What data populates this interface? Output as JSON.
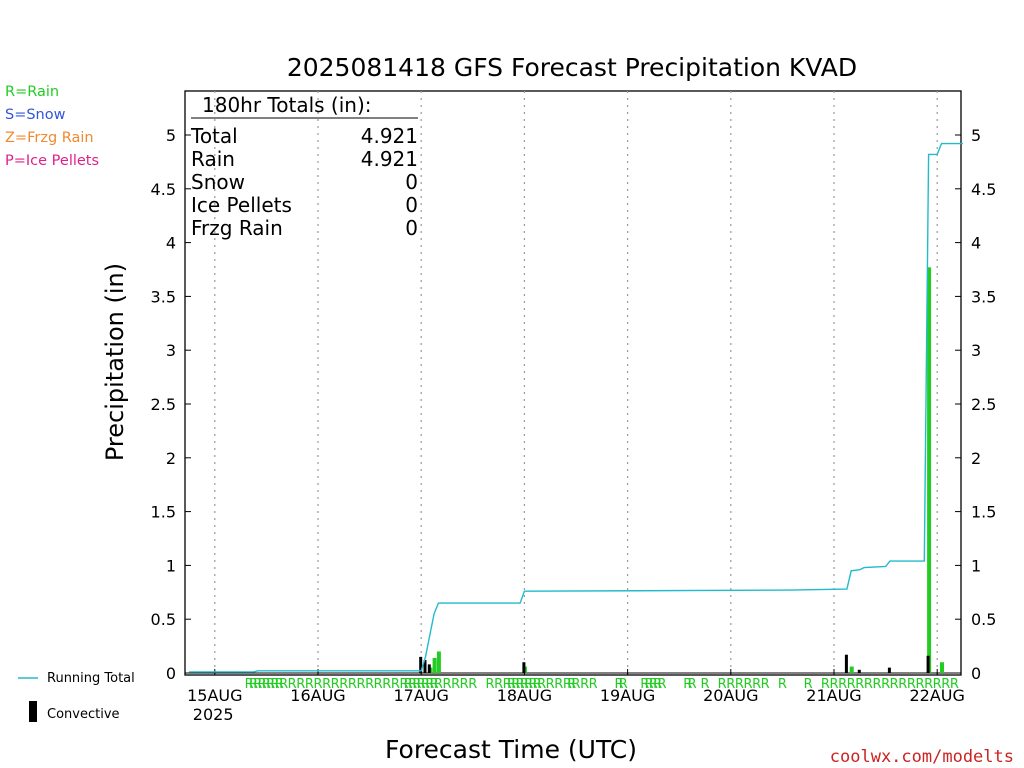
{
  "chart_data": {
    "type": "bar",
    "title": "2025081418 GFS Forecast Precipitation KVAD",
    "ylabel": "Precipitation (in)",
    "xlabel": "Forecast Time (UTC)",
    "ylim": [
      0,
      5.4
    ],
    "yticks": [
      "0",
      "0.5",
      "1",
      "1.5",
      "2",
      "2.5",
      "3",
      "3.5",
      "4",
      "4.5",
      "5"
    ],
    "xticks": [
      {
        "label": "15AUG",
        "sub": "2025",
        "hour": 6
      },
      {
        "label": "16AUG",
        "sub": "",
        "hour": 30
      },
      {
        "label": "17AUG",
        "sub": "",
        "hour": 54
      },
      {
        "label": "18AUG",
        "sub": "",
        "hour": 78
      },
      {
        "label": "19AUG",
        "sub": "",
        "hour": 102
      },
      {
        "label": "20AUG",
        "sub": "",
        "hour": 126
      },
      {
        "label": "21AUG",
        "sub": "",
        "hour": 150
      },
      {
        "label": "22AUG",
        "sub": "",
        "hour": 174
      }
    ],
    "x_unit": "forecast hour",
    "grid": "vertical dotted at 00Z",
    "legend_precip_types": [
      {
        "label": "R=Rain",
        "color": "#22cc22"
      },
      {
        "label": "S=Snow",
        "color": "#3355dd"
      },
      {
        "label": "Z=Frzg Rain",
        "color": "#f08a30"
      },
      {
        "label": "P=Ice Pellets",
        "color": "#e0208a"
      }
    ],
    "legend_series": [
      {
        "label": "Running Total",
        "color": "#22bbcc"
      },
      {
        "label": "Convective",
        "color": "#000000"
      }
    ],
    "totals": {
      "heading": "180hr Totals (in):",
      "rows": [
        {
          "label": "Total",
          "value": "4.921"
        },
        {
          "label": "Rain",
          "value": "4.921"
        },
        {
          "label": "Snow",
          "value": "0"
        },
        {
          "label": "Ice Pellets",
          "value": "0"
        },
        {
          "label": "Frzg Rain",
          "value": "0"
        }
      ]
    },
    "running_total": {
      "name": "Running Total",
      "points": [
        [
          0,
          0.01
        ],
        [
          15,
          0.01
        ],
        [
          16,
          0.02
        ],
        [
          54,
          0.02
        ],
        [
          55,
          0.15
        ],
        [
          56,
          0.35
        ],
        [
          57,
          0.55
        ],
        [
          58,
          0.65
        ],
        [
          77,
          0.65
        ],
        [
          78,
          0.76
        ],
        [
          140,
          0.77
        ],
        [
          153,
          0.78
        ],
        [
          154,
          0.95
        ],
        [
          156,
          0.96
        ],
        [
          157,
          0.98
        ],
        [
          162,
          0.99
        ],
        [
          163,
          1.04
        ],
        [
          171,
          1.04
        ],
        [
          172,
          4.82
        ],
        [
          174,
          4.82
        ],
        [
          175,
          4.92
        ],
        [
          180,
          4.92
        ]
      ]
    },
    "rain_bars": {
      "name": "Rain",
      "points": [
        [
          56,
          0.05
        ],
        [
          57,
          0.14
        ],
        [
          58,
          0.2
        ],
        [
          78,
          0.06
        ],
        [
          154,
          0.06
        ],
        [
          172,
          3.77
        ],
        [
          175,
          0.1
        ]
      ]
    },
    "convective_bars": {
      "name": "Convective",
      "points": [
        [
          54,
          0.15
        ],
        [
          55,
          0.12
        ],
        [
          56,
          0.08
        ],
        [
          78,
          0.1
        ],
        [
          153,
          0.17
        ],
        [
          156,
          0.03
        ],
        [
          163,
          0.05
        ],
        [
          172,
          0.16
        ]
      ]
    },
    "precip_type_marks": {
      "label": "R",
      "hours": [
        14,
        15,
        16,
        17,
        18,
        19,
        20,
        21,
        22,
        24,
        26,
        28,
        30,
        32,
        34,
        36,
        38,
        40,
        42,
        44,
        46,
        48,
        50,
        51,
        52,
        53,
        54,
        55,
        56,
        57,
        58,
        60,
        62,
        64,
        66,
        70,
        72,
        74,
        75,
        76,
        77,
        78,
        79,
        80,
        81,
        82,
        84,
        86,
        88,
        89,
        90,
        92,
        94,
        100,
        101,
        106,
        107,
        108,
        109,
        110,
        116,
        117,
        120,
        124,
        126,
        128,
        130,
        132,
        134,
        138,
        144,
        148,
        150,
        152,
        154,
        156,
        158,
        160,
        162,
        164,
        166,
        168,
        170,
        172,
        174,
        176,
        178
      ]
    },
    "credit": "coolwx.com/modelts"
  }
}
